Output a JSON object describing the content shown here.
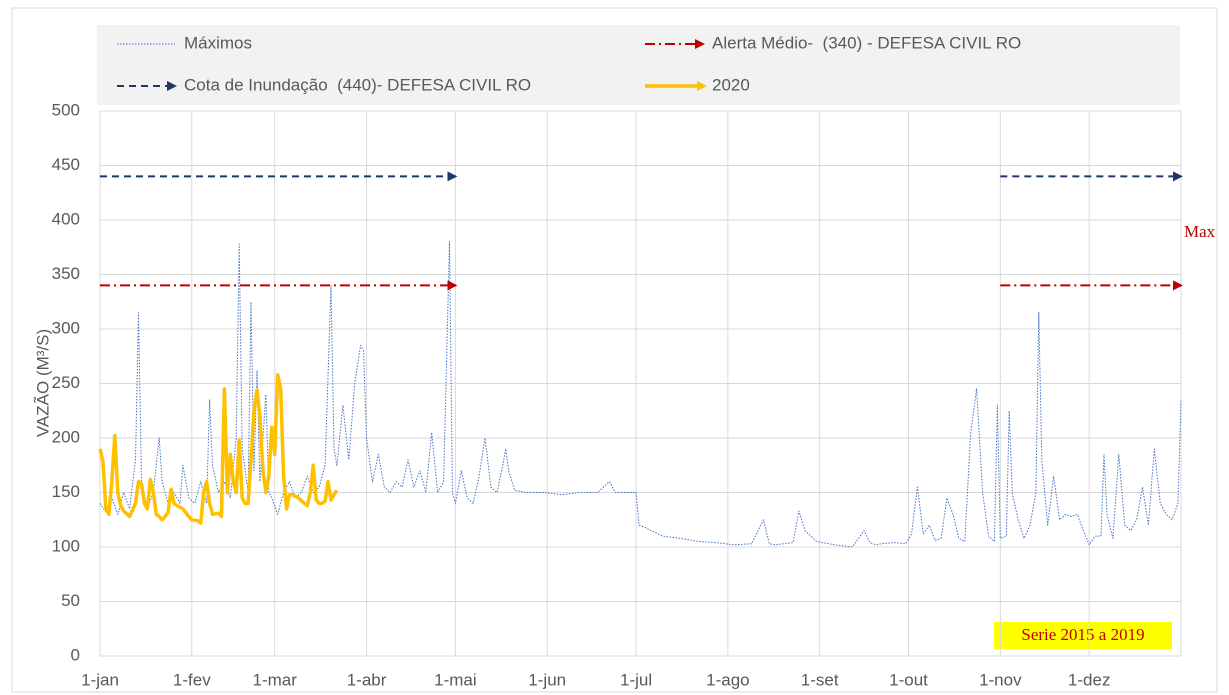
{
  "chart_data": {
    "type": "line",
    "y_label": "VAZÃO (M³/S)",
    "xlim": [
      0,
      365
    ],
    "xticks": [
      {
        "value": 0,
        "label": "1-jan"
      },
      {
        "value": 31,
        "label": "1-fev"
      },
      {
        "value": 59,
        "label": "1-mar"
      },
      {
        "value": 90,
        "label": "1-abr"
      },
      {
        "value": 120,
        "label": "1-mai"
      },
      {
        "value": 151,
        "label": "1-jun"
      },
      {
        "value": 181,
        "label": "1-jul"
      },
      {
        "value": 212,
        "label": "1-ago"
      },
      {
        "value": 243,
        "label": "1-set"
      },
      {
        "value": 273,
        "label": "1-out"
      },
      {
        "value": 304,
        "label": "1-nov"
      },
      {
        "value": 334,
        "label": "1-dez"
      }
    ],
    "ylim": [
      0,
      500
    ],
    "yticks": [
      0,
      50,
      100,
      150,
      200,
      250,
      300,
      350,
      400,
      450,
      500
    ],
    "grid": true,
    "legend": "top",
    "annotations": [
      "Max",
      "Serie 2015 a 2019"
    ],
    "series": [
      {
        "name": "Máximos",
        "color": "#4472c4",
        "line_style": "dotted",
        "x": [
          0,
          2,
          4,
          6,
          8,
          10,
          12,
          13,
          14,
          16,
          18,
          20,
          21,
          23,
          25,
          27,
          28,
          30,
          32,
          34,
          36,
          37,
          38,
          40,
          42,
          44,
          46,
          47,
          48,
          50,
          51,
          52,
          53,
          54,
          56,
          57,
          58,
          60,
          62,
          64,
          66,
          68,
          70,
          72,
          74,
          76,
          78,
          79,
          80,
          82,
          84,
          86,
          88,
          89,
          90,
          92,
          94,
          96,
          98,
          100,
          102,
          104,
          106,
          108,
          110,
          112,
          114,
          116,
          118,
          119,
          120,
          122,
          124,
          126,
          128,
          130,
          132,
          134,
          136,
          137,
          138,
          140,
          144,
          150,
          156,
          162,
          168,
          172,
          174,
          176,
          180,
          181,
          182,
          184,
          190,
          196,
          202,
          208,
          214,
          220,
          224,
          226,
          228,
          234,
          236,
          238,
          242,
          248,
          254,
          258,
          260,
          262,
          264,
          268,
          272,
          274,
          276,
          278,
          280,
          282,
          284,
          286,
          288,
          290,
          292,
          294,
          296,
          298,
          300,
          302,
          303,
          304,
          306,
          307,
          308,
          310,
          312,
          314,
          316,
          317,
          318,
          320,
          322,
          324,
          326,
          328,
          330,
          332,
          334,
          336,
          338,
          339,
          340,
          342,
          344,
          346,
          348,
          350,
          352,
          354,
          356,
          358,
          360,
          362,
          364,
          365
        ],
        "values": [
          140,
          132,
          145,
          130,
          150,
          135,
          180,
          315,
          160,
          135,
          150,
          200,
          160,
          140,
          150,
          140,
          175,
          145,
          140,
          160,
          140,
          235,
          175,
          150,
          160,
          145,
          200,
          378,
          190,
          150,
          325,
          170,
          262,
          160,
          240,
          150,
          145,
          130,
          150,
          160,
          145,
          150,
          165,
          150,
          155,
          175,
          340,
          190,
          175,
          230,
          180,
          250,
          285,
          280,
          200,
          160,
          185,
          155,
          150,
          160,
          155,
          180,
          155,
          170,
          150,
          205,
          150,
          160,
          380,
          150,
          140,
          170,
          145,
          140,
          165,
          200,
          155,
          150,
          175,
          190,
          170,
          152,
          150,
          150,
          148,
          150,
          150,
          160,
          150,
          150,
          150,
          150,
          120,
          118,
          110,
          108,
          105,
          104,
          102,
          103,
          125,
          103,
          102,
          104,
          133,
          115,
          105,
          102,
          100,
          115,
          104,
          102,
          103,
          104,
          103,
          112,
          155,
          112,
          120,
          106,
          108,
          145,
          130,
          108,
          105,
          205,
          245,
          150,
          110,
          105,
          230,
          108,
          110,
          225,
          150,
          125,
          108,
          120,
          150,
          315,
          180,
          120,
          165,
          125,
          130,
          128,
          130,
          115,
          102,
          110,
          110,
          185,
          130,
          108,
          185,
          120,
          115,
          125,
          155,
          120,
          190,
          140,
          130,
          125,
          140,
          235
        ]
      },
      {
        "name": "Alerta Médio-  (340) - DEFESA CIVIL RO",
        "color": "#c00000",
        "line_style": "dashdot",
        "arrow": true,
        "x": [
          0,
          120,
          212,
          304,
          365
        ],
        "values": [
          340,
          340,
          null,
          340,
          340
        ]
      },
      {
        "name": "Cota de Inundação  (440)- DEFESA CIVIL RO",
        "color": "#1f3864",
        "line_style": "dashed",
        "arrow": true,
        "x": [
          0,
          120,
          212,
          304,
          365
        ],
        "values": [
          440,
          440,
          null,
          440,
          440
        ]
      },
      {
        "name": "2020",
        "color": "#ffc000",
        "line_style": "solid",
        "x": [
          0,
          1,
          2,
          3,
          4,
          5,
          6,
          7,
          8,
          10,
          12,
          13,
          14,
          15,
          16,
          17,
          18,
          19,
          20,
          21,
          22,
          23,
          24,
          25,
          26,
          28,
          30,
          31,
          33,
          34,
          35,
          36,
          37,
          38,
          40,
          41,
          42,
          43,
          44,
          45,
          46,
          47,
          48,
          49,
          50,
          51,
          52,
          53,
          54,
          55,
          56,
          57,
          58,
          59,
          60,
          61,
          62,
          63,
          64,
          65,
          67,
          69,
          70,
          71,
          72,
          73,
          74,
          75,
          76,
          77,
          78,
          79,
          80
        ],
        "values": [
          190,
          178,
          135,
          130,
          160,
          202,
          150,
          138,
          133,
          128,
          140,
          160,
          158,
          140,
          135,
          162,
          150,
          130,
          128,
          125,
          128,
          132,
          153,
          140,
          138,
          135,
          128,
          125,
          124,
          122,
          150,
          160,
          140,
          130,
          131,
          128,
          245,
          150,
          185,
          160,
          150,
          198,
          145,
          140,
          140,
          180,
          225,
          244,
          220,
          170,
          150,
          165,
          210,
          185,
          258,
          245,
          165,
          135,
          148,
          148,
          145,
          140,
          138,
          150,
          175,
          143,
          140,
          140,
          142,
          160,
          143,
          148,
          152
        ]
      }
    ]
  }
}
